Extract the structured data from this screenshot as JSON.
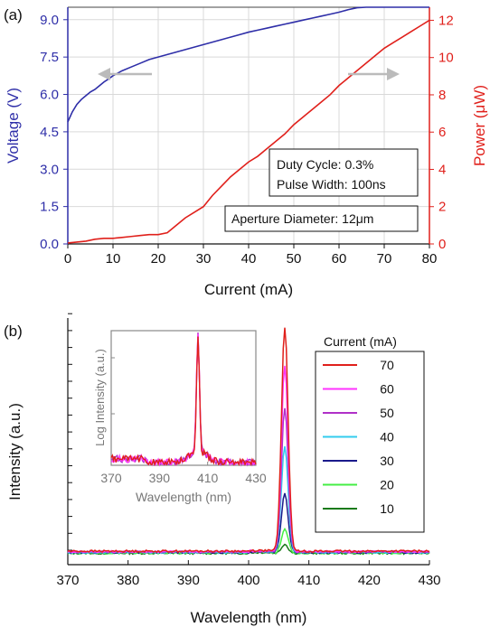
{
  "chart_data": [
    {
      "panel_label": "(a)",
      "type": "line",
      "xlabel": "Current (mA)",
      "ylabel": "Voltage (V)",
      "y2label": "Power (μW)",
      "xlim": [
        0,
        80
      ],
      "ylim": [
        0,
        9.5
      ],
      "y2lim": [
        0,
        12.7
      ],
      "x_ticks": [
        "0",
        "10",
        "20",
        "30",
        "40",
        "50",
        "60",
        "70",
        "80"
      ],
      "y_ticks": [
        "0.0",
        "1.5",
        "3.0",
        "4.5",
        "6.0",
        "7.5",
        "9.0"
      ],
      "y2_ticks": [
        "0",
        "2",
        "4",
        "6",
        "8",
        "10",
        "12"
      ],
      "grid": true,
      "series": [
        {
          "axis": "left",
          "color": "#2e2ea8",
          "points": [
            [
              0,
              4.9
            ],
            [
              1,
              5.3
            ],
            [
              2,
              5.6
            ],
            [
              3,
              5.8
            ],
            [
              4,
              5.95
            ],
            [
              5,
              6.1
            ],
            [
              6,
              6.2
            ],
            [
              7,
              6.35
            ],
            [
              8,
              6.5
            ],
            [
              9,
              6.62
            ],
            [
              10,
              6.75
            ],
            [
              12,
              6.95
            ],
            [
              14,
              7.1
            ],
            [
              16,
              7.25
            ],
            [
              18,
              7.4
            ],
            [
              20,
              7.5
            ],
            [
              22,
              7.6
            ],
            [
              24,
              7.7
            ],
            [
              26,
              7.8
            ],
            [
              28,
              7.9
            ],
            [
              30,
              8.0
            ],
            [
              32,
              8.1
            ],
            [
              34,
              8.2
            ],
            [
              36,
              8.3
            ],
            [
              38,
              8.4
            ],
            [
              40,
              8.5
            ],
            [
              42,
              8.58
            ],
            [
              44,
              8.66
            ],
            [
              46,
              8.74
            ],
            [
              48,
              8.82
            ],
            [
              50,
              8.9
            ],
            [
              52,
              8.98
            ],
            [
              54,
              9.06
            ],
            [
              56,
              9.14
            ],
            [
              58,
              9.22
            ],
            [
              60,
              9.3
            ],
            [
              62,
              9.4
            ],
            [
              64,
              9.48
            ],
            [
              66,
              9.55
            ],
            [
              68,
              9.62
            ],
            [
              70,
              9.7
            ],
            [
              72,
              9.78
            ],
            [
              74,
              9.85
            ],
            [
              76,
              9.92
            ],
            [
              78,
              10.0
            ],
            [
              80,
              10.05
            ]
          ]
        },
        {
          "axis": "right",
          "color": "#e0201b",
          "points": [
            [
              0,
              0.05
            ],
            [
              2,
              0.1
            ],
            [
              4,
              0.15
            ],
            [
              6,
              0.25
            ],
            [
              8,
              0.3
            ],
            [
              10,
              0.3
            ],
            [
              12,
              0.35
            ],
            [
              14,
              0.4
            ],
            [
              16,
              0.45
            ],
            [
              18,
              0.5
            ],
            [
              20,
              0.5
            ],
            [
              22,
              0.6
            ],
            [
              24,
              1.0
            ],
            [
              26,
              1.4
            ],
            [
              28,
              1.7
            ],
            [
              30,
              2.0
            ],
            [
              32,
              2.6
            ],
            [
              34,
              3.1
            ],
            [
              36,
              3.6
            ],
            [
              38,
              4.0
            ],
            [
              40,
              4.4
            ],
            [
              42,
              4.7
            ],
            [
              44,
              5.1
            ],
            [
              46,
              5.5
            ],
            [
              48,
              5.9
            ],
            [
              50,
              6.4
            ],
            [
              52,
              6.8
            ],
            [
              54,
              7.2
            ],
            [
              56,
              7.6
            ],
            [
              58,
              8.0
            ],
            [
              60,
              8.5
            ],
            [
              62,
              8.9
            ],
            [
              64,
              9.3
            ],
            [
              66,
              9.7
            ],
            [
              68,
              10.1
            ],
            [
              70,
              10.5
            ],
            [
              72,
              10.8
            ],
            [
              74,
              11.1
            ],
            [
              76,
              11.4
            ],
            [
              78,
              11.7
            ],
            [
              80,
              12.0
            ]
          ]
        }
      ],
      "annotations": [
        "Duty Cycle: 0.3%",
        "Pulse Width: 100ns",
        "Aperture Diameter: 12μm"
      ]
    },
    {
      "panel_label": "(b)",
      "type": "line",
      "xlabel": "Wavelength (nm)",
      "ylabel": "Intensity (a.u.)",
      "xlim": [
        370,
        430
      ],
      "x_ticks": [
        "370",
        "380",
        "390",
        "400",
        "410",
        "420",
        "430"
      ],
      "ylim": [
        0,
        100
      ],
      "peak_wavelength": 406,
      "legend_title": "Current (mA)",
      "series": [
        {
          "name": "70",
          "color": "#e0201b",
          "peak": 100,
          "baseline": 1.2
        },
        {
          "name": "60",
          "color": "#ff33ff",
          "peak": 83,
          "baseline": 1.0
        },
        {
          "name": "50",
          "color": "#b030c8",
          "peak": 64,
          "baseline": 0.9
        },
        {
          "name": "40",
          "color": "#33ccee",
          "peak": 47,
          "baseline": 0.7
        },
        {
          "name": "30",
          "color": "#1a1a8c",
          "peak": 26,
          "baseline": 0.6
        },
        {
          "name": "20",
          "color": "#44ee44",
          "peak": 11,
          "baseline": 0.4
        },
        {
          "name": "10",
          "color": "#1a7a1a",
          "peak": 4,
          "baseline": 0.3
        }
      ],
      "inset": {
        "type": "line",
        "xlabel": "Wavelength (nm)",
        "ylabel": "Log Intensity (a.u.)",
        "xlim": [
          370,
          430
        ],
        "x_ticks": [
          "370",
          "390",
          "410",
          "430"
        ],
        "ylog": true
      }
    }
  ]
}
